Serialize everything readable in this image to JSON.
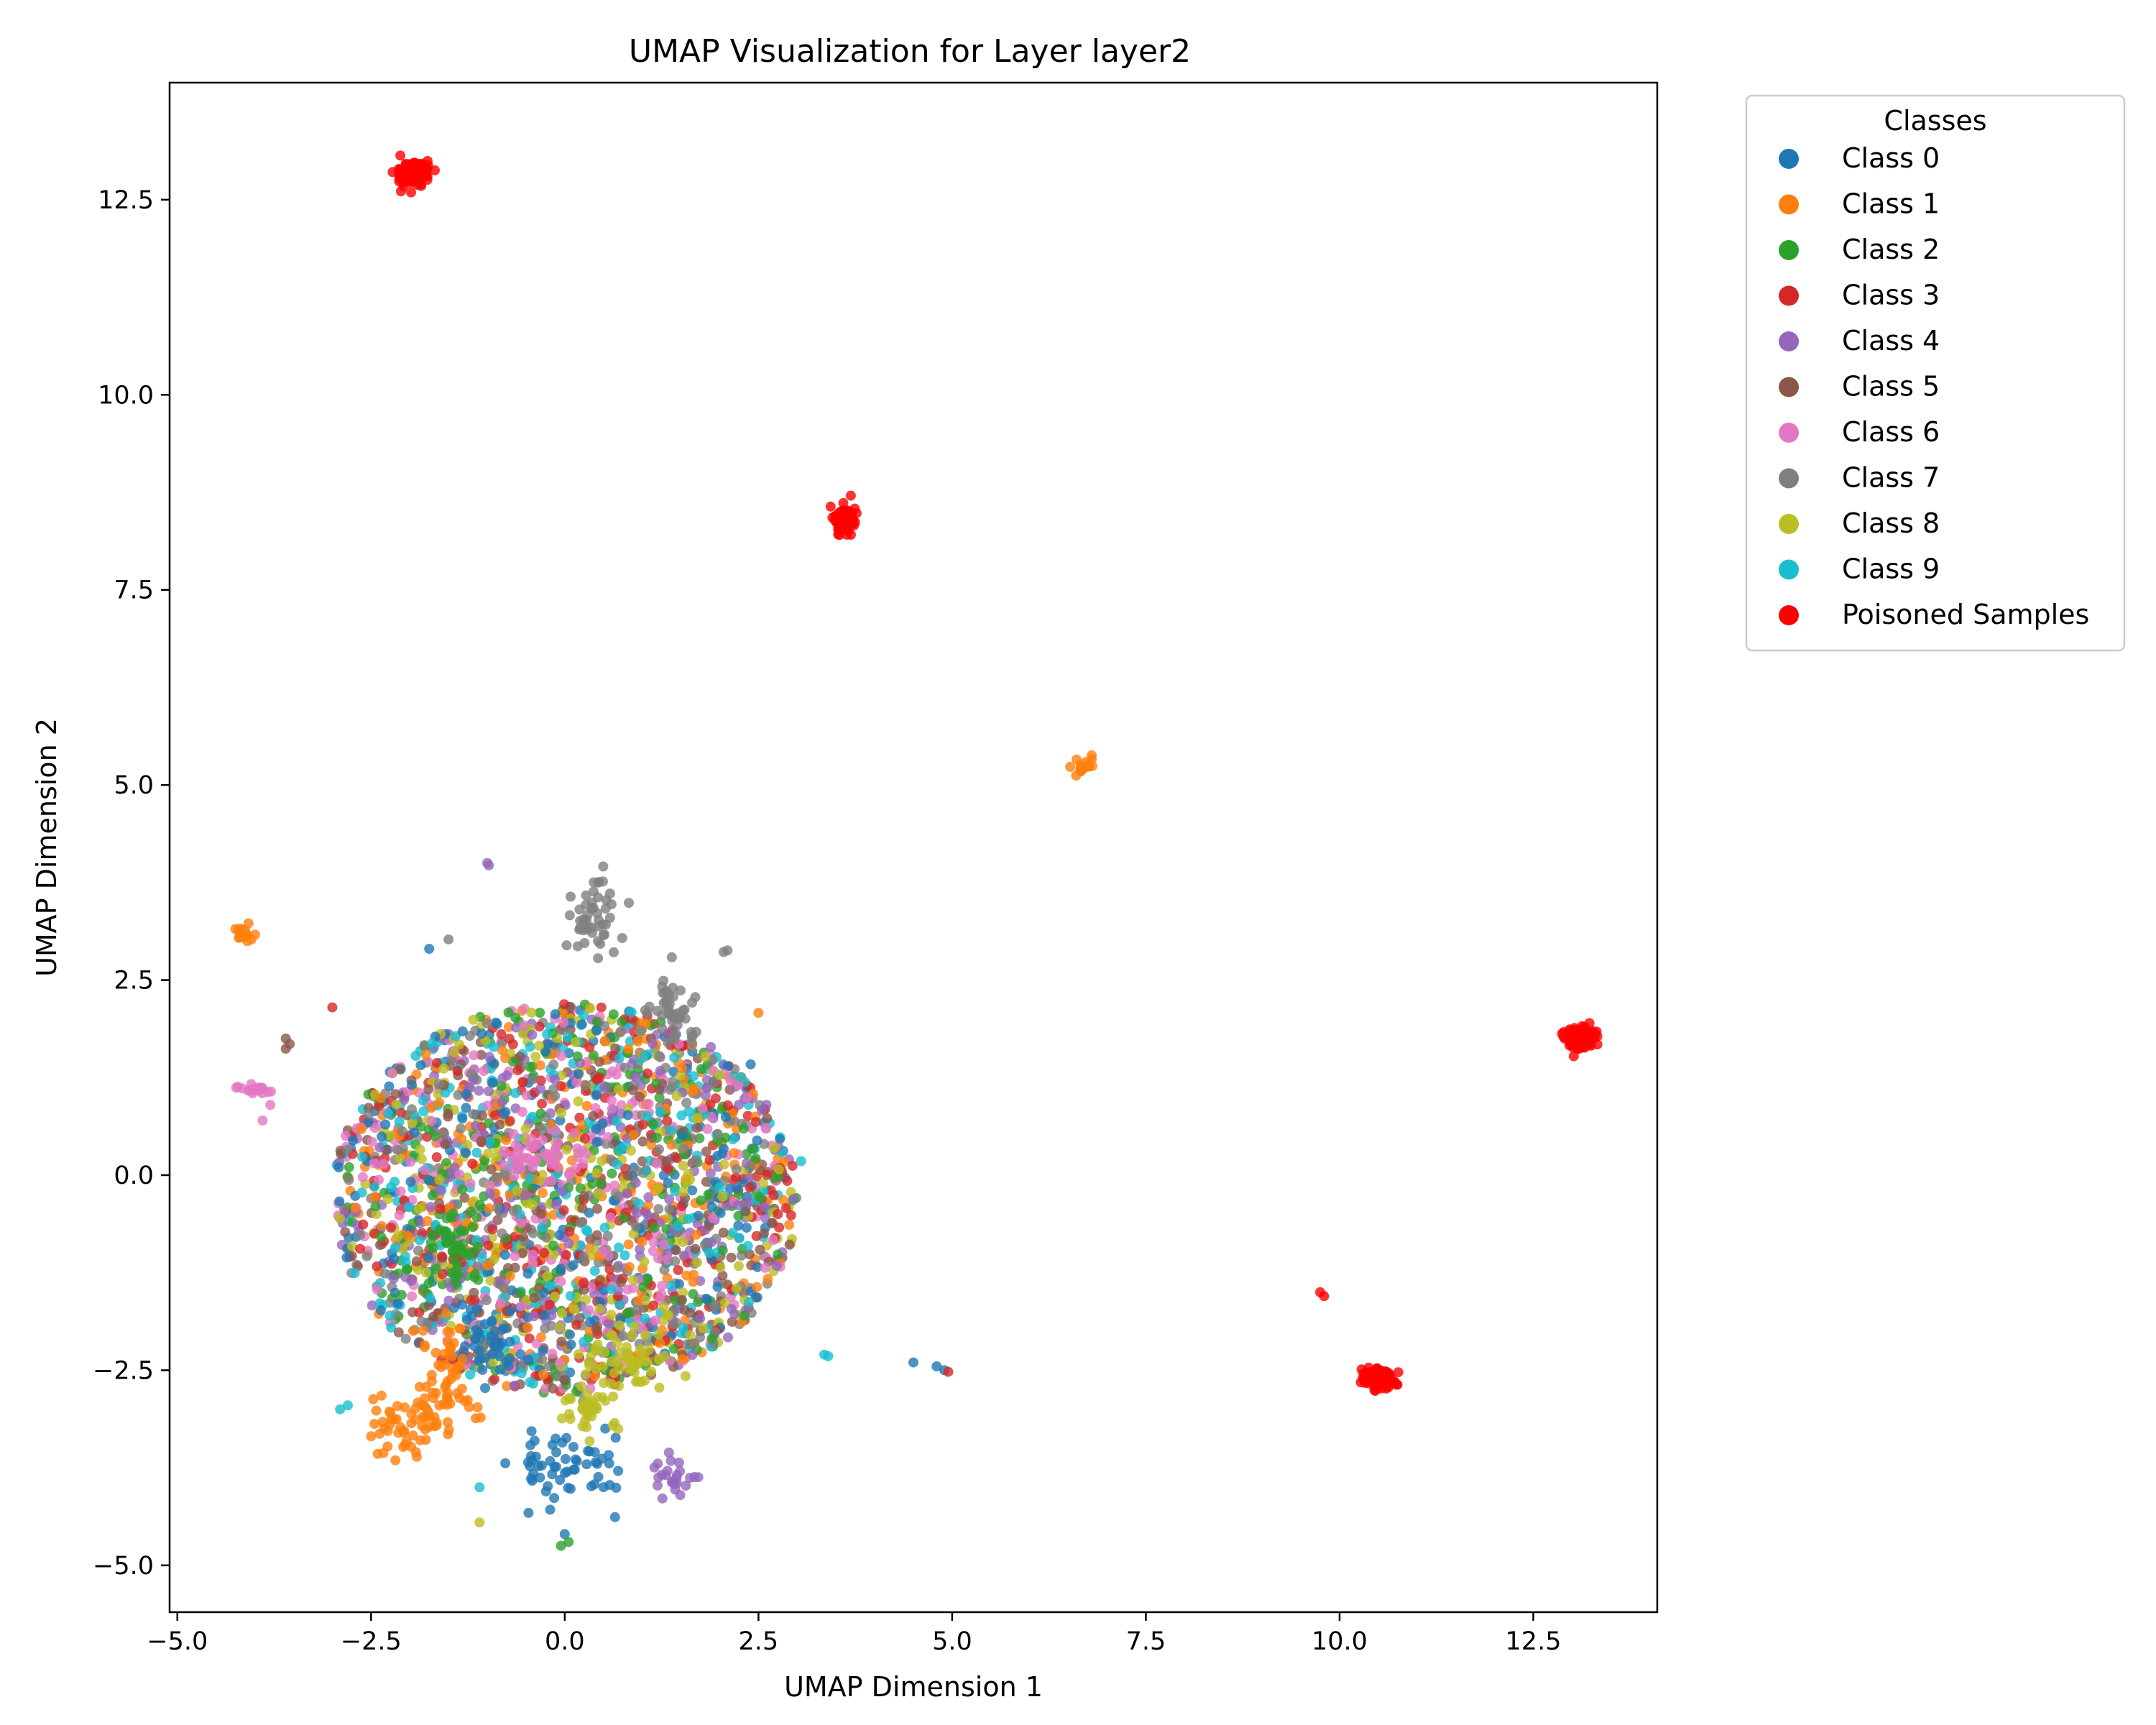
{
  "chart_data": {
    "type": "scatter",
    "title": "UMAP Visualization for Layer layer2",
    "xlabel": "UMAP Dimension 1",
    "ylabel": "UMAP Dimension 2",
    "xlim": [
      -5.1,
      14.1
    ],
    "ylim": [
      -5.6,
      14.0
    ],
    "xticks": [
      -5.0,
      -2.5,
      0.0,
      2.5,
      5.0,
      7.5,
      10.0,
      12.5
    ],
    "yticks": [
      -5.0,
      -2.5,
      0.0,
      2.5,
      5.0,
      7.5,
      10.0,
      12.5
    ],
    "xtick_labels": [
      "−5.0",
      "−2.5",
      "0.0",
      "2.5",
      "5.0",
      "7.5",
      "10.0",
      "12.5"
    ],
    "ytick_labels": [
      "−5.0",
      "−2.5",
      "0.0",
      "2.5",
      "5.0",
      "7.5",
      "10.0",
      "12.5"
    ],
    "grid": false,
    "legend": {
      "title": "Classes",
      "position": "outside-top-right"
    },
    "series": [
      {
        "name": "Class 0",
        "color": "#1f77b4",
        "clusters": [
          {
            "cx": 0.0,
            "cy": -0.3,
            "rx": 3.0,
            "ry": 2.5,
            "weight": 1
          },
          {
            "cx": 0.1,
            "cy": -3.7,
            "rx": 0.7,
            "ry": 0.5,
            "weight": 0.5
          },
          {
            "cx": -0.9,
            "cy": -2.2,
            "rx": 0.4,
            "ry": 0.4,
            "weight": 0.3
          }
        ],
        "points": [
          [
            4.9,
            -2.5
          ],
          [
            4.5,
            -2.4
          ],
          [
            4.8,
            -2.45
          ],
          [
            -1.75,
            2.9
          ],
          [
            2.4,
            1.42
          ],
          [
            0.0,
            -4.6
          ]
        ]
      },
      {
        "name": "Class 1",
        "color": "#ff7f0e",
        "clusters": [
          {
            "cx": 0.0,
            "cy": -0.3,
            "rx": 3.0,
            "ry": 2.5,
            "weight": 1
          },
          {
            "cx": -2.0,
            "cy": -3.2,
            "rx": 0.55,
            "ry": 0.4,
            "weight": 0.5
          },
          {
            "cx": -1.5,
            "cy": -2.6,
            "rx": 0.3,
            "ry": 0.6,
            "weight": 0.4
          },
          {
            "cx": 6.7,
            "cy": 5.25,
            "rx": 0.12,
            "ry": 0.12,
            "weight": 0.15
          },
          {
            "cx": -4.1,
            "cy": 3.1,
            "rx": 0.12,
            "ry": 0.12,
            "weight": 0.15
          }
        ],
        "points": [
          [
            2.5,
            2.08
          ],
          [
            6.6,
            5.12
          ],
          [
            6.8,
            5.38
          ]
        ]
      },
      {
        "name": "Class 2",
        "color": "#2ca02c",
        "clusters": [
          {
            "cx": 0.0,
            "cy": -0.3,
            "rx": 3.0,
            "ry": 2.5,
            "weight": 1
          },
          {
            "cx": -1.4,
            "cy": -0.9,
            "rx": 0.3,
            "ry": 0.5,
            "weight": 0.35
          }
        ],
        "points": [
          [
            -0.05,
            -4.75
          ],
          [
            0.05,
            -4.7
          ]
        ]
      },
      {
        "name": "Class 3",
        "color": "#d62728",
        "clusters": [
          {
            "cx": 0.0,
            "cy": -0.3,
            "rx": 3.0,
            "ry": 2.5,
            "weight": 1
          }
        ],
        "points": [
          [
            4.95,
            -2.52
          ],
          [
            -3.0,
            2.15
          ]
        ]
      },
      {
        "name": "Class 4",
        "color": "#9467bd",
        "clusters": [
          {
            "cx": 0.0,
            "cy": -0.3,
            "rx": 3.0,
            "ry": 2.5,
            "weight": 1
          },
          {
            "cx": 1.4,
            "cy": -3.9,
            "rx": 0.3,
            "ry": 0.2,
            "weight": 0.2
          }
        ],
        "points": [
          [
            -1.0,
            4.0
          ],
          [
            -0.98,
            3.97
          ]
        ]
      },
      {
        "name": "Class 5",
        "color": "#8c564b",
        "clusters": [
          {
            "cx": 0.0,
            "cy": -0.3,
            "rx": 3.0,
            "ry": 2.5,
            "weight": 1
          }
        ],
        "points": [
          [
            -3.6,
            1.75
          ],
          [
            -3.55,
            1.68
          ],
          [
            -3.6,
            1.62
          ]
        ]
      },
      {
        "name": "Class 6",
        "color": "#e377c2",
        "clusters": [
          {
            "cx": 0.0,
            "cy": -0.3,
            "rx": 3.0,
            "ry": 2.5,
            "weight": 1
          },
          {
            "cx": -0.3,
            "cy": 0.2,
            "rx": 0.6,
            "ry": 0.35,
            "weight": 0.4
          },
          {
            "cx": -4.0,
            "cy": 1.1,
            "rx": 0.25,
            "ry": 0.06,
            "weight": 0.15
          }
        ],
        "points": [
          [
            -3.8,
            0.9
          ],
          [
            -3.9,
            0.7
          ]
        ]
      },
      {
        "name": "Class 7",
        "color": "#7f7f7f",
        "clusters": [
          {
            "cx": 0.0,
            "cy": -0.3,
            "rx": 3.0,
            "ry": 2.5,
            "weight": 1
          },
          {
            "cx": 0.4,
            "cy": 3.4,
            "rx": 0.3,
            "ry": 0.5,
            "weight": 0.4
          },
          {
            "cx": 1.4,
            "cy": 2.1,
            "rx": 0.25,
            "ry": 0.45,
            "weight": 0.4
          }
        ],
        "points": [
          [
            -1.5,
            3.02
          ],
          [
            2.1,
            2.88
          ],
          [
            2.05,
            2.86
          ]
        ]
      },
      {
        "name": "Class 8",
        "color": "#bcbd22",
        "clusters": [
          {
            "cx": 0.0,
            "cy": -0.3,
            "rx": 3.0,
            "ry": 2.5,
            "weight": 1
          },
          {
            "cx": 0.8,
            "cy": -2.4,
            "rx": 0.5,
            "ry": 0.4,
            "weight": 0.45
          },
          {
            "cx": 0.3,
            "cy": -3.0,
            "rx": 0.3,
            "ry": 0.3,
            "weight": 0.3
          }
        ],
        "points": [
          [
            -1.1,
            -4.45
          ],
          [
            2.0,
            1.28
          ]
        ]
      },
      {
        "name": "Class 9",
        "color": "#17becf",
        "clusters": [
          {
            "cx": 0.0,
            "cy": -0.3,
            "rx": 3.0,
            "ry": 2.5,
            "weight": 1
          }
        ],
        "points": [
          [
            3.35,
            -2.3
          ],
          [
            3.4,
            -2.32
          ],
          [
            -2.8,
            -2.95
          ],
          [
            -2.9,
            -3.0
          ],
          [
            3.05,
            0.18
          ],
          [
            -1.1,
            -4.0
          ]
        ]
      },
      {
        "name": "Poisoned Samples",
        "color": "#ff0000",
        "clusters": [
          {
            "cx": -1.95,
            "cy": 12.85,
            "rx": 0.18,
            "ry": 0.15,
            "weight": 1
          },
          {
            "cx": 3.6,
            "cy": 8.4,
            "rx": 0.12,
            "ry": 0.15,
            "weight": 1
          },
          {
            "cx": 13.1,
            "cy": 1.75,
            "rx": 0.18,
            "ry": 0.12,
            "weight": 1
          },
          {
            "cx": 10.5,
            "cy": -2.6,
            "rx": 0.2,
            "ry": 0.1,
            "weight": 1
          }
        ],
        "points": [
          [
            9.75,
            -1.5
          ],
          [
            9.8,
            -1.55
          ]
        ]
      }
    ]
  }
}
